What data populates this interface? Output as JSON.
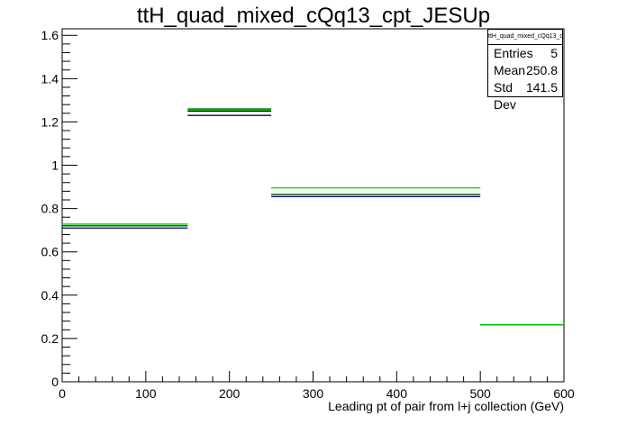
{
  "title": "ttH_quad_mixed_cQq13_cpt_JESUp",
  "stats_box": {
    "name": "ttH_quad_mixed_cQq13_cpt_JESUp",
    "entries_label": "Entries",
    "entries_value": "5",
    "mean_label": "Mean",
    "mean_value": "250.8",
    "stddev_label": "Std Dev",
    "stddev_value": "141.5"
  },
  "chart_data": {
    "type": "histogram",
    "title": "ttH_quad_mixed_cQq13_cpt_JESUp",
    "xlabel": "Leading pt of pair from l+j collection (GeV)",
    "ylabel": "",
    "xlim": [
      0,
      600
    ],
    "ylim": [
      0,
      1.63
    ],
    "x_ticks": [
      0,
      100,
      200,
      300,
      400,
      500,
      600
    ],
    "x_tick_labels": [
      "0",
      "100",
      "200",
      "300",
      "400",
      "500",
      "600"
    ],
    "y_ticks": [
      0,
      0.2,
      0.4,
      0.6,
      0.8,
      1.0,
      1.2,
      1.4,
      1.6
    ],
    "y_tick_labels": [
      "0",
      "0.2",
      "0.4",
      "0.6",
      "0.8",
      "1",
      "1.2",
      "1.4",
      "1.6"
    ],
    "bin_edges": [
      0,
      150,
      250,
      500,
      600
    ],
    "series": [
      {
        "color": "#000000",
        "values": [
          0.72,
          1.25,
          0.865,
          0.263
        ]
      },
      {
        "color": "#00008b",
        "values": [
          0.71,
          1.23,
          0.855,
          0.263
        ]
      },
      {
        "color": "#006400",
        "values": [
          0.72,
          1.26,
          0.865,
          0.263
        ]
      },
      {
        "color": "#00cc00",
        "values": [
          0.728,
          1.255,
          0.895,
          0.263
        ]
      }
    ]
  }
}
